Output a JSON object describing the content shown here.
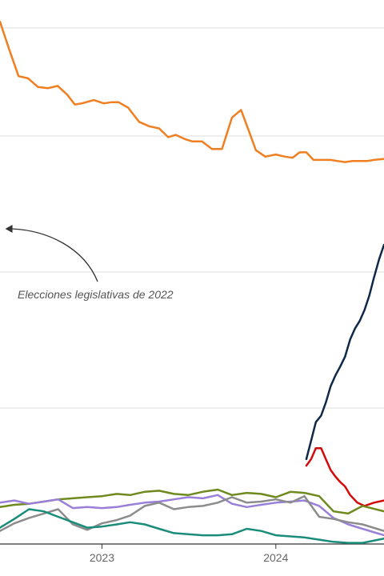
{
  "chart_data": {
    "type": "line",
    "title": "",
    "xlabel": "",
    "ylabel": "",
    "x_tick_labels": [
      "2023",
      "2024"
    ],
    "x_tick_dates": [
      "2023-01-01",
      "2024-01-01"
    ],
    "xlim": [
      "2022-06-01",
      "2024-08-15"
    ],
    "ylim": [
      0,
      0.5
    ],
    "y_gridlines": [
      0.125,
      0.25,
      0.375
    ],
    "grid": true,
    "annotation": {
      "text": "Elecciones legislativas de 2022",
      "target_date": "2022-06-12"
    },
    "series": [
      {
        "color": "#f07f21",
        "x": [
          "2022-06-01",
          "2022-06-20",
          "2022-07-10",
          "2022-07-30",
          "2022-08-20",
          "2022-09-10",
          "2022-09-30",
          "2022-10-20",
          "2022-11-05",
          "2022-11-20",
          "2022-12-15",
          "2023-01-05",
          "2023-01-20",
          "2023-02-05",
          "2023-02-25",
          "2023-03-20",
          "2023-04-10",
          "2023-05-01",
          "2023-05-20",
          "2023-06-05",
          "2023-06-25",
          "2023-07-10",
          "2023-07-30",
          "2023-08-20",
          "2023-09-10",
          "2023-10-01",
          "2023-10-20",
          "2023-11-05",
          "2023-11-20",
          "2023-12-10",
          "2024-01-01",
          "2024-01-20",
          "2024-02-05",
          "2024-02-20",
          "2024-03-05",
          "2024-03-20",
          "2024-04-05",
          "2024-04-25",
          "2024-05-10",
          "2024-05-25",
          "2024-06-10",
          "2024-06-25",
          "2024-07-10",
          "2024-07-25",
          "2024-08-15"
        ],
        "y": [
          0.48,
          0.455,
          0.43,
          0.428,
          0.42,
          0.419,
          0.421,
          0.413,
          0.404,
          0.405,
          0.408,
          0.405,
          0.406,
          0.406,
          0.401,
          0.388,
          0.384,
          0.382,
          0.374,
          0.376,
          0.372,
          0.37,
          0.37,
          0.363,
          0.363,
          0.392,
          0.399,
          0.38,
          0.362,
          0.356,
          0.358,
          0.356,
          0.355,
          0.36,
          0.36,
          0.353,
          0.353,
          0.353,
          0.352,
          0.351,
          0.352,
          0.352,
          0.352,
          0.353,
          0.354
        ]
      },
      {
        "color": "#0f2847",
        "x": [
          "2024-03-05",
          "2024-03-15",
          "2024-03-25",
          "2024-04-05",
          "2024-04-15",
          "2024-04-25",
          "2024-05-05",
          "2024-05-15",
          "2024-05-25",
          "2024-06-05",
          "2024-06-15",
          "2024-06-25",
          "2024-07-05",
          "2024-07-15",
          "2024-07-25",
          "2024-08-05",
          "2024-08-15"
        ],
        "y": [
          0.078,
          0.095,
          0.112,
          0.118,
          0.13,
          0.145,
          0.155,
          0.163,
          0.172,
          0.188,
          0.198,
          0.205,
          0.215,
          0.228,
          0.245,
          0.262,
          0.275
        ]
      },
      {
        "color": "#d40a0a",
        "x": [
          "2024-03-05",
          "2024-03-15",
          "2024-03-25",
          "2024-04-05",
          "2024-04-15",
          "2024-04-25",
          "2024-05-05",
          "2024-05-15",
          "2024-05-25",
          "2024-06-05",
          "2024-06-20",
          "2024-07-05",
          "2024-07-25",
          "2024-08-15"
        ],
        "y": [
          0.072,
          0.078,
          0.088,
          0.088,
          0.078,
          0.068,
          0.062,
          0.057,
          0.053,
          0.045,
          0.038,
          0.035,
          0.038,
          0.04
        ]
      },
      {
        "color": "#6e8a1e",
        "x": [
          "2022-06-01",
          "2022-07-01",
          "2022-08-01",
          "2022-09-01",
          "2022-10-01",
          "2022-11-01",
          "2022-12-01",
          "2023-01-01",
          "2023-02-01",
          "2023-03-01",
          "2023-04-01",
          "2023-05-01",
          "2023-06-01",
          "2023-07-01",
          "2023-08-01",
          "2023-09-01",
          "2023-10-01",
          "2023-11-01",
          "2023-12-01",
          "2024-01-01",
          "2024-02-01",
          "2024-03-01",
          "2024-04-01",
          "2024-05-01",
          "2024-06-01",
          "2024-07-01",
          "2024-08-15"
        ],
        "y": [
          0.034,
          0.036,
          0.037,
          0.039,
          0.041,
          0.042,
          0.043,
          0.044,
          0.046,
          0.045,
          0.048,
          0.049,
          0.046,
          0.045,
          0.048,
          0.05,
          0.045,
          0.047,
          0.046,
          0.043,
          0.048,
          0.047,
          0.044,
          0.03,
          0.028,
          0.035,
          0.03
        ]
      },
      {
        "color": "#9a7fd9",
        "x": [
          "2022-06-01",
          "2022-07-01",
          "2022-08-01",
          "2022-09-01",
          "2022-10-01",
          "2022-11-01",
          "2022-12-01",
          "2023-01-01",
          "2023-02-01",
          "2023-03-01",
          "2023-04-01",
          "2023-05-01",
          "2023-06-01",
          "2023-07-01",
          "2023-08-01",
          "2023-09-01",
          "2023-10-01",
          "2023-11-01",
          "2023-12-01",
          "2024-01-01",
          "2024-02-01",
          "2024-03-01",
          "2024-04-01",
          "2024-05-01",
          "2024-06-01",
          "2024-07-01",
          "2024-08-15"
        ],
        "y": [
          0.038,
          0.04,
          0.037,
          0.039,
          0.041,
          0.033,
          0.034,
          0.033,
          0.034,
          0.036,
          0.038,
          0.039,
          0.041,
          0.043,
          0.042,
          0.045,
          0.037,
          0.034,
          0.036,
          0.038,
          0.039,
          0.04,
          0.035,
          0.024,
          0.018,
          0.014,
          0.008
        ]
      },
      {
        "color": "#8c8c8c",
        "x": [
          "2022-06-01",
          "2022-07-01",
          "2022-08-01",
          "2022-09-01",
          "2022-10-01",
          "2022-11-01",
          "2022-12-01",
          "2023-01-01",
          "2023-02-01",
          "2023-03-01",
          "2023-04-01",
          "2023-05-01",
          "2023-06-01",
          "2023-07-01",
          "2023-08-01",
          "2023-09-01",
          "2023-10-01",
          "2023-11-01",
          "2023-12-01",
          "2024-01-01",
          "2024-02-01",
          "2024-03-01",
          "2024-04-01",
          "2024-05-01",
          "2024-06-01",
          "2024-07-01",
          "2024-08-15"
        ],
        "y": [
          0.012,
          0.019,
          0.024,
          0.028,
          0.032,
          0.018,
          0.013,
          0.019,
          0.022,
          0.026,
          0.035,
          0.038,
          0.032,
          0.034,
          0.035,
          0.038,
          0.043,
          0.038,
          0.039,
          0.041,
          0.038,
          0.044,
          0.025,
          0.023,
          0.02,
          0.018,
          0.012
        ]
      },
      {
        "color": "#1a8c7a",
        "x": [
          "2022-06-01",
          "2022-07-01",
          "2022-08-01",
          "2022-09-01",
          "2022-10-01",
          "2022-11-01",
          "2022-12-01",
          "2023-01-01",
          "2023-02-01",
          "2023-03-01",
          "2023-04-01",
          "2023-05-01",
          "2023-06-01",
          "2023-07-01",
          "2023-08-01",
          "2023-09-01",
          "2023-10-01",
          "2023-11-01",
          "2023-12-01",
          "2024-01-01",
          "2024-02-01",
          "2024-03-01",
          "2024-04-01",
          "2024-05-01",
          "2024-06-01",
          "2024-07-01",
          "2024-08-15"
        ],
        "y": [
          0.015,
          0.023,
          0.032,
          0.03,
          0.025,
          0.02,
          0.015,
          0.016,
          0.018,
          0.02,
          0.018,
          0.014,
          0.01,
          0.009,
          0.008,
          0.008,
          0.009,
          0.014,
          0.012,
          0.008,
          0.007,
          0.006,
          0.004,
          0.002,
          0.001,
          0.001,
          0.005
        ]
      }
    ]
  }
}
